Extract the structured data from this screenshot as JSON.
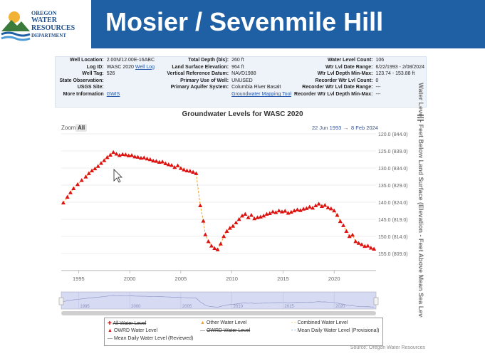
{
  "header": {
    "title": "Mosier / Sevenmile Hill",
    "logo_lines": [
      "OREGON",
      "WATER",
      "RESOURCES",
      "DEPARTMENT"
    ],
    "bg_color": "#1f5fa3"
  },
  "well_info": {
    "rows": [
      [
        {
          "label": "Well Location:",
          "value": "2.00N/12.00E-16ABC"
        },
        {
          "label": "Total Depth (bls):",
          "value": "260 ft"
        },
        {
          "label": "Water Level Count:",
          "value": "106"
        }
      ],
      [
        {
          "label": "Log ID:",
          "value": "WASC 2020",
          "link": "Well Log"
        },
        {
          "label": "Land Surface Elevation:",
          "value": "964 ft"
        },
        {
          "label": "Wtr Lvl Date Range:",
          "value": "6/22/1993 - 2/08/2024"
        }
      ],
      [
        {
          "label": "Well Tag:",
          "value": "526"
        },
        {
          "label": "Vertical Reference Datum:",
          "value": "NAVD1988"
        },
        {
          "label": "Wtr Lvl Depth Min-Max:",
          "value": "123.74 - 153.88 ft"
        }
      ],
      [
        {
          "label": "State Observation:",
          "value": ""
        },
        {
          "label": "Primary Use of Well:",
          "value": "UNUSED"
        },
        {
          "label": "Recorder Wtr Lvl Count:",
          "value": "0"
        }
      ],
      [
        {
          "label": "USGS Site:",
          "value": ""
        },
        {
          "label": "Primary Aquifer System:",
          "value": "Columbia River Basalt"
        },
        {
          "label": "Recorder Wtr Lvl Date Range:",
          "value": "---"
        }
      ],
      [
        {
          "label": "More Information",
          "value": "",
          "link": "GWIS"
        },
        {
          "label": "",
          "value": "",
          "link": "Groundwater Mapping Tool"
        },
        {
          "label": "Recorder Wtr Lvl Depth Min-Max:",
          "value": "---"
        }
      ]
    ]
  },
  "chart_data": {
    "type": "scatter",
    "title": "Groundwater Levels for WASC 2020",
    "zoom_label": "Zoom",
    "zoom_all": "All",
    "range_start": "22 Jun 1993",
    "range_arrow": "→",
    "range_end": "8 Feb 2024",
    "ylabel": "Water Level - Feet Below Land Surface (Elevation - Feet Above Mean Sea Level)",
    "ylim": [
      120,
      155
    ],
    "xlim": [
      1993.3,
      2024.1
    ],
    "y_ticks": [
      {
        "v": 120,
        "label": "120.0 (844.0)"
      },
      {
        "v": 125,
        "label": "125.0 (839.0)"
      },
      {
        "v": 130,
        "label": "130.0 (834.0)"
      },
      {
        "v": 135,
        "label": "135.0 (829.0)"
      },
      {
        "v": 140,
        "label": "140.0 (824.0)"
      },
      {
        "v": 145,
        "label": "145.0 (819.0)"
      },
      {
        "v": 150,
        "label": "150.0 (814.0)"
      },
      {
        "v": 155,
        "label": "155.0 (809.0)"
      }
    ],
    "x_ticks": [
      {
        "v": 1995,
        "label": "1995"
      },
      {
        "v": 2000,
        "label": "2000"
      },
      {
        "v": 2005,
        "label": "2005"
      },
      {
        "v": 2010,
        "label": "2010"
      },
      {
        "v": 2015,
        "label": "2015"
      },
      {
        "v": 2020,
        "label": "2020"
      }
    ],
    "series": [
      {
        "name": "OWRD Water Level",
        "color": "#dd1111",
        "marker": "triangle",
        "points": [
          [
            1993.5,
            140.2
          ],
          [
            1993.9,
            138.5
          ],
          [
            1994.2,
            137.2
          ],
          [
            1994.5,
            136.0
          ],
          [
            1994.9,
            134.8
          ],
          [
            1995.3,
            133.6
          ],
          [
            1995.7,
            132.6
          ],
          [
            1996.0,
            131.6
          ],
          [
            1996.3,
            130.8
          ],
          [
            1996.6,
            130.2
          ],
          [
            1996.9,
            129.5
          ],
          [
            1997.2,
            128.6
          ],
          [
            1997.5,
            127.8
          ],
          [
            1997.8,
            126.9
          ],
          [
            1998.1,
            126.2
          ],
          [
            1998.4,
            125.4
          ],
          [
            1998.7,
            125.9
          ],
          [
            1999.0,
            126.3
          ],
          [
            1999.3,
            126.0
          ],
          [
            1999.6,
            126.1
          ],
          [
            1999.9,
            126.4
          ],
          [
            2000.2,
            126.3
          ],
          [
            2000.5,
            126.7
          ],
          [
            2000.8,
            126.8
          ],
          [
            2001.1,
            127.1
          ],
          [
            2001.4,
            127.0
          ],
          [
            2001.7,
            127.3
          ],
          [
            2002.0,
            127.5
          ],
          [
            2002.3,
            127.9
          ],
          [
            2002.6,
            128.0
          ],
          [
            2002.9,
            128.3
          ],
          [
            2003.2,
            128.2
          ],
          [
            2003.5,
            128.7
          ],
          [
            2003.8,
            129.0
          ],
          [
            2004.1,
            129.2
          ],
          [
            2004.4,
            129.8
          ],
          [
            2004.7,
            129.3
          ],
          [
            2005.0,
            130.1
          ],
          [
            2005.3,
            130.5
          ],
          [
            2005.6,
            130.8
          ],
          [
            2005.9,
            130.9
          ],
          [
            2006.2,
            131.2
          ],
          [
            2006.5,
            131.6
          ],
          [
            2006.9,
            141.0
          ],
          [
            2007.2,
            145.5
          ],
          [
            2007.4,
            149.5
          ],
          [
            2007.7,
            151.5
          ],
          [
            2008.0,
            152.8
          ],
          [
            2008.3,
            153.5
          ],
          [
            2008.6,
            153.9
          ],
          [
            2008.9,
            152.2
          ],
          [
            2009.2,
            150.0
          ],
          [
            2009.5,
            148.5
          ],
          [
            2009.8,
            147.6
          ],
          [
            2010.1,
            147.0
          ],
          [
            2010.4,
            146.0
          ],
          [
            2010.7,
            145.0
          ],
          [
            2011.0,
            144.0
          ],
          [
            2011.3,
            143.5
          ],
          [
            2011.6,
            144.5
          ],
          [
            2011.9,
            143.8
          ],
          [
            2012.2,
            144.8
          ],
          [
            2012.5,
            144.5
          ],
          [
            2012.8,
            144.3
          ],
          [
            2013.1,
            144.0
          ],
          [
            2013.4,
            143.5
          ],
          [
            2013.7,
            143.3
          ],
          [
            2014.0,
            142.8
          ],
          [
            2014.3,
            143.0
          ],
          [
            2014.6,
            142.5
          ],
          [
            2014.9,
            142.8
          ],
          [
            2015.2,
            142.6
          ],
          [
            2015.5,
            143.2
          ],
          [
            2015.8,
            142.9
          ],
          [
            2016.1,
            142.5
          ],
          [
            2016.4,
            142.2
          ],
          [
            2016.7,
            142.4
          ],
          [
            2017.0,
            142.0
          ],
          [
            2017.3,
            141.8
          ],
          [
            2017.6,
            141.4
          ],
          [
            2017.9,
            141.7
          ],
          [
            2018.2,
            141.0
          ],
          [
            2018.5,
            140.5
          ],
          [
            2018.8,
            141.2
          ],
          [
            2019.1,
            140.9
          ],
          [
            2019.4,
            141.6
          ],
          [
            2019.7,
            141.9
          ],
          [
            2020.0,
            142.5
          ],
          [
            2020.3,
            143.8
          ],
          [
            2020.6,
            145.6
          ],
          [
            2020.9,
            146.8
          ],
          [
            2021.2,
            148.5
          ],
          [
            2021.5,
            150.0
          ],
          [
            2021.8,
            149.6
          ],
          [
            2022.1,
            151.5
          ],
          [
            2022.4,
            152.0
          ],
          [
            2022.7,
            152.4
          ],
          [
            2023.0,
            152.9
          ],
          [
            2023.3,
            152.8
          ],
          [
            2023.6,
            153.4
          ],
          [
            2023.9,
            153.7
          ]
        ]
      }
    ],
    "navigator_ticks": [
      "1995",
      "2000",
      "2005",
      "2010",
      "2015",
      "2020"
    ],
    "legend": [
      "All Water Level",
      "Other Water Level",
      "Combined Water Level",
      "OWRD Water Level",
      "OWRD Water Level",
      "Mean Daily Water Level (Provisional)",
      "Mean Daily Water Level (Reviewed)"
    ],
    "source": "Source: Oregon Water Resources"
  }
}
